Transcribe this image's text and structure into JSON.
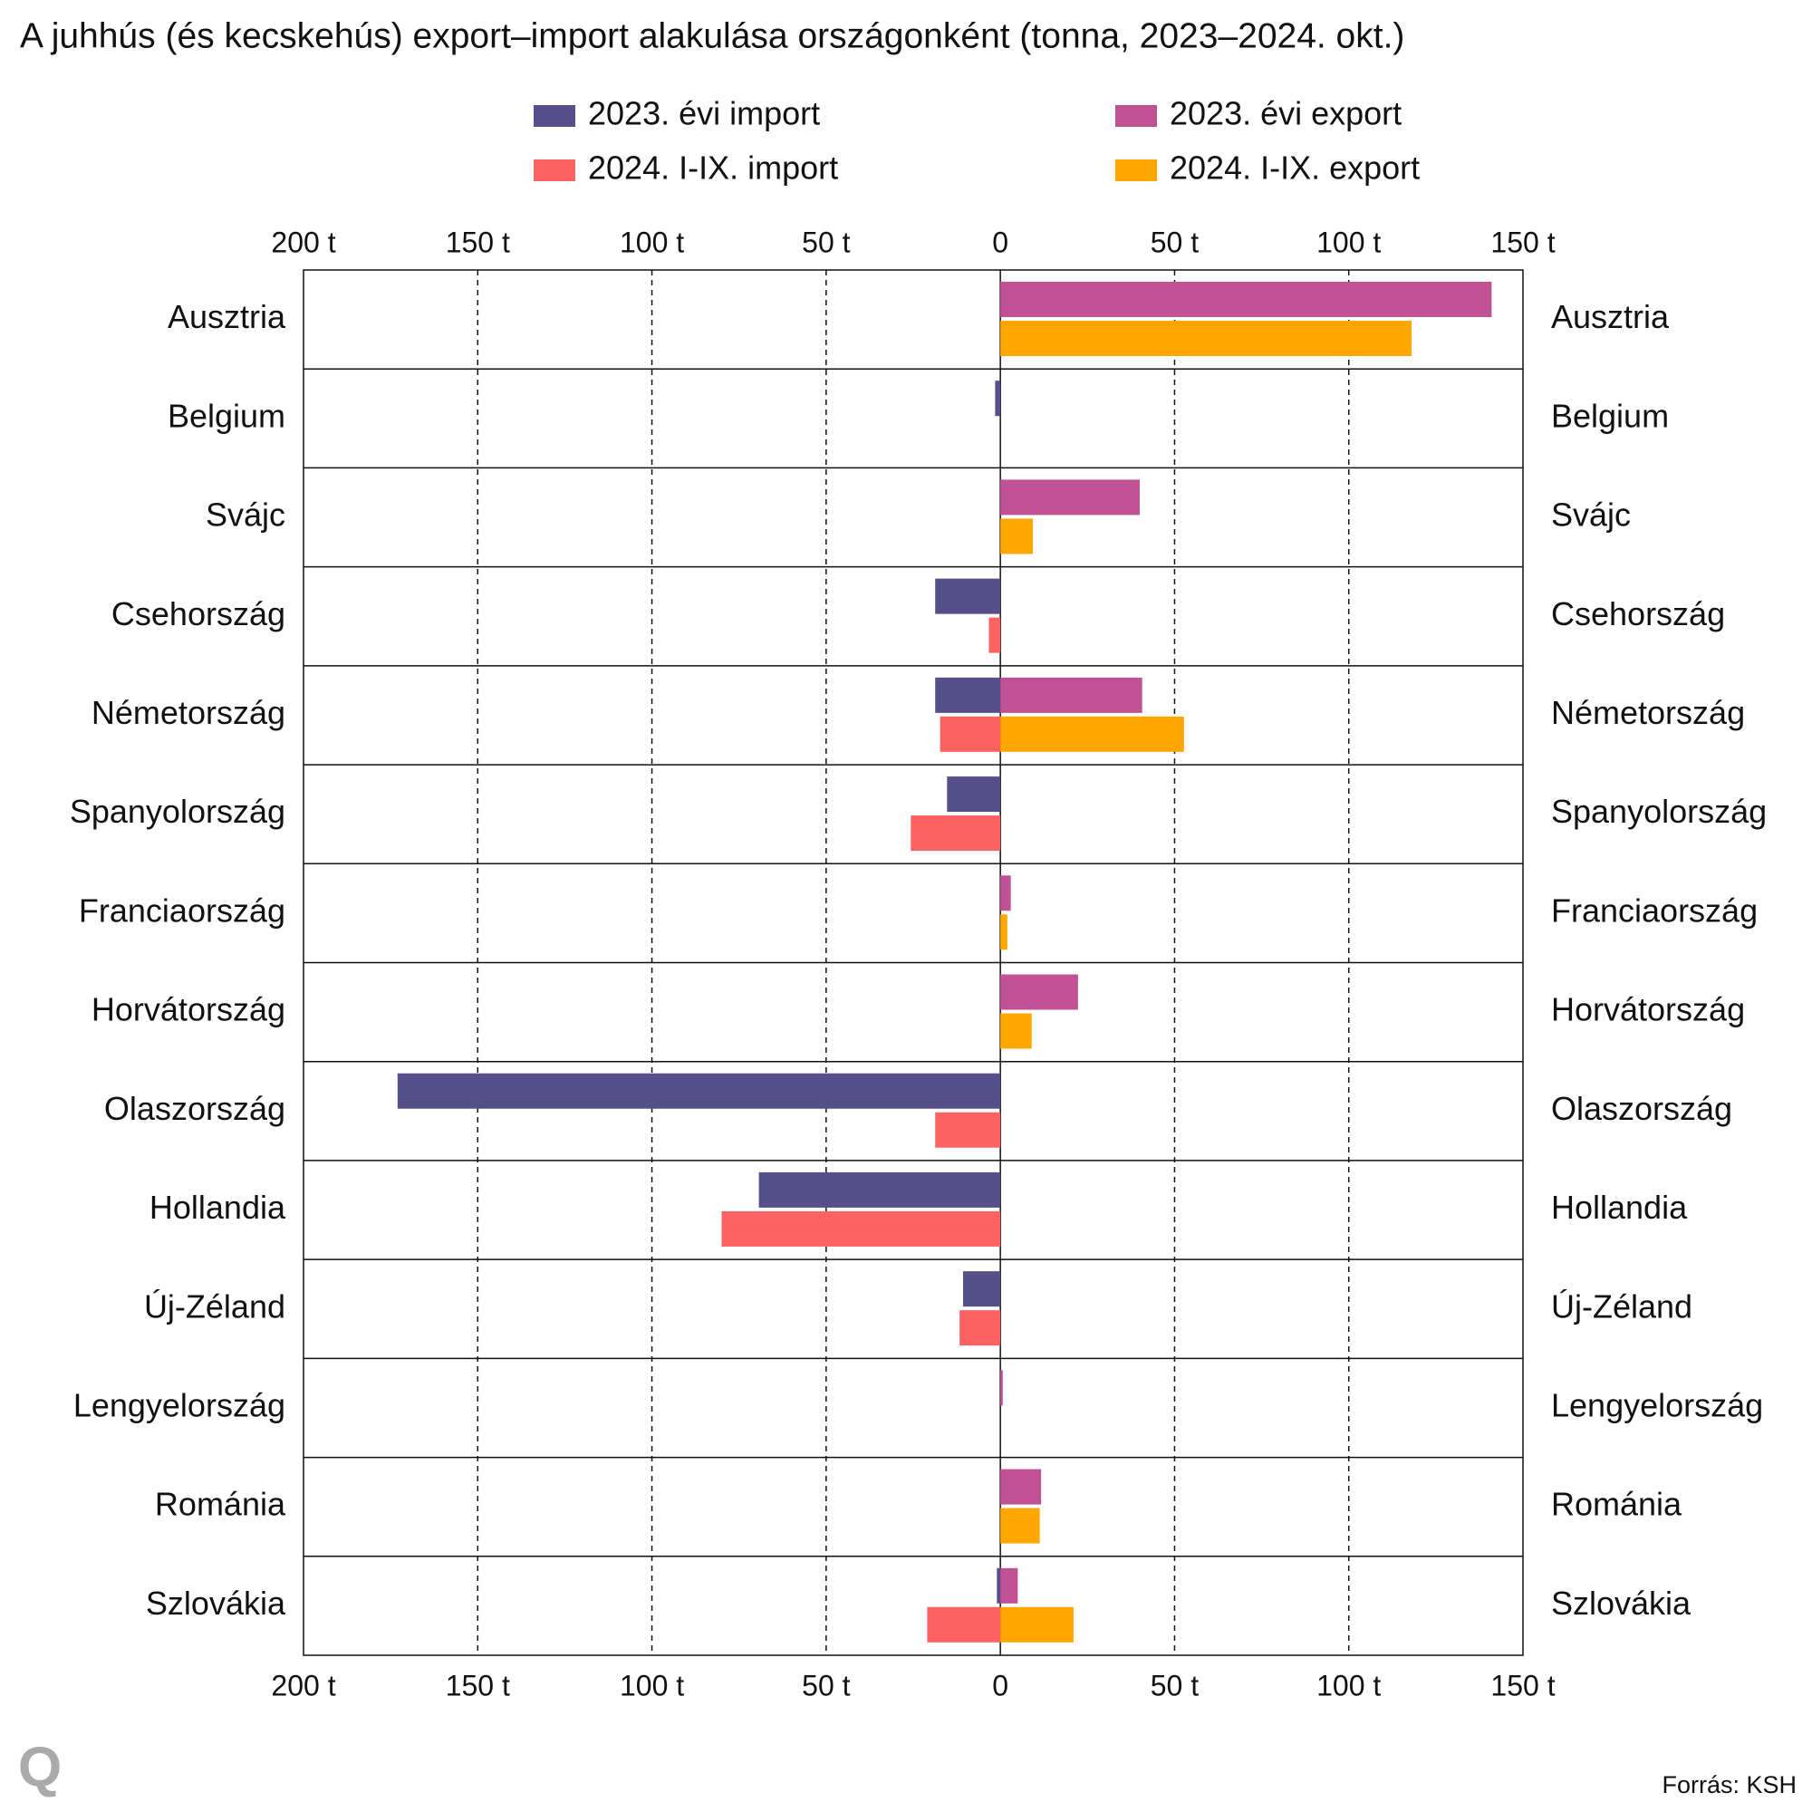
{
  "chart_data": {
    "type": "bar",
    "orientation": "horizontal",
    "title": "A juhhús (és kecskehús) export–import alakulása országonként (tonna, 2023–2024. okt.)",
    "categories": [
      "Ausztria",
      "Belgium",
      "Svájc",
      "Csehország",
      "Németország",
      "Spanyolország",
      "Franciaország",
      "Horvátország",
      "Olaszország",
      "Hollandia",
      "Új-Zéland",
      "Lengyelország",
      "Románia",
      "Szlovákia"
    ],
    "series": [
      {
        "name": "2023. évi import",
        "color": "#574f8a",
        "values": [
          null,
          -1.5,
          null,
          -18.7,
          -18.7,
          -15.3,
          null,
          null,
          -173,
          -69.3,
          -10.7,
          null,
          null,
          -1
        ]
      },
      {
        "name": "2023. évi export",
        "color": "#c05195",
        "values": [
          141,
          null,
          40,
          null,
          40.7,
          null,
          3,
          22.3,
          null,
          null,
          null,
          0.7,
          11.7,
          5
        ]
      },
      {
        "name": "2024. I-IX. import",
        "color": "#fd6262",
        "values": [
          null,
          null,
          null,
          -3.3,
          -17.3,
          -25.7,
          null,
          null,
          -18.7,
          -80,
          -11.7,
          null,
          null,
          -21
        ]
      },
      {
        "name": "2024. I-IX. export",
        "color": "#ffa600",
        "values": [
          118,
          null,
          9.3,
          null,
          52.7,
          null,
          2,
          9,
          null,
          null,
          null,
          null,
          11.3,
          21
        ]
      }
    ],
    "xlim": [
      -200,
      150
    ],
    "xticks": [
      {
        "value": -200,
        "label": "200 t"
      },
      {
        "value": -150,
        "label": "150 t"
      },
      {
        "value": -100,
        "label": "100 t"
      },
      {
        "value": -50,
        "label": "50 t"
      },
      0,
      {
        "value": 50,
        "label": "50 t"
      },
      {
        "value": 100,
        "label": "100 t"
      },
      {
        "value": 150,
        "label": "150 t"
      }
    ],
    "grid": true,
    "source": "Forrás: KSH",
    "logo": "Q"
  }
}
